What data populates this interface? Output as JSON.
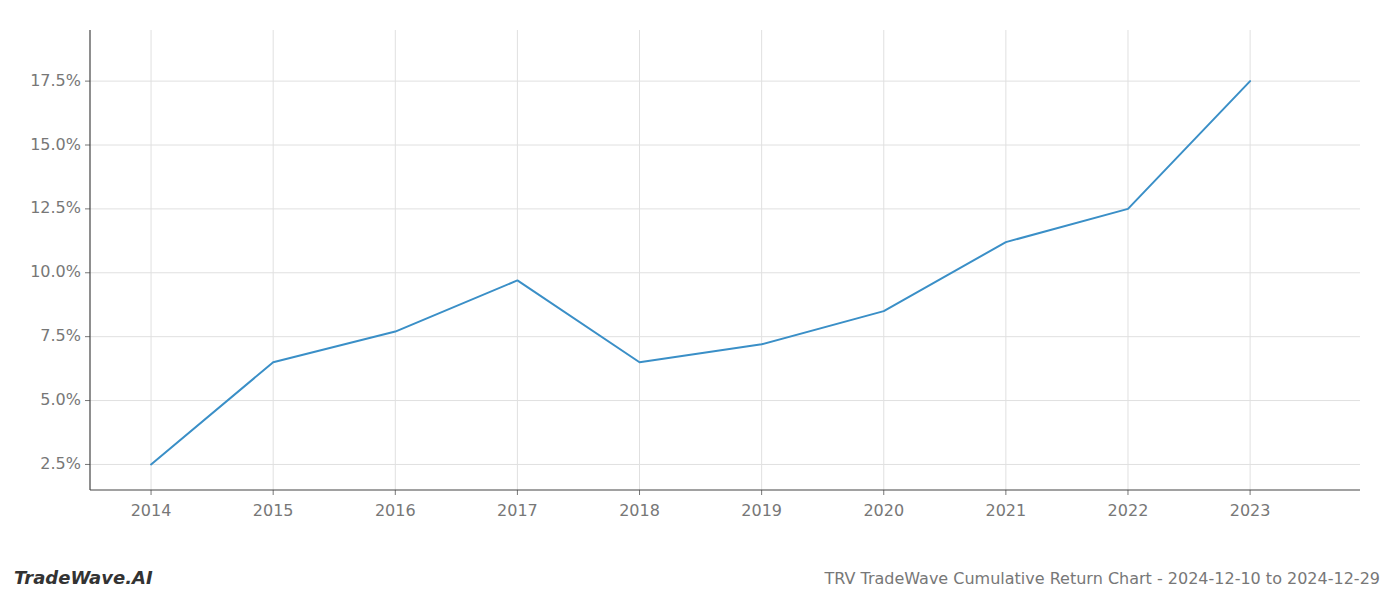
{
  "chart_data": {
    "type": "line",
    "title": "TRV TradeWave Cumulative Return Chart - 2024-12-10 to 2024-12-29",
    "annotations": [
      "TradeWave.AI"
    ],
    "x": [
      2014,
      2015,
      2016,
      2017,
      2018,
      2019,
      2020,
      2021,
      2022,
      2023
    ],
    "values": [
      2.5,
      6.5,
      7.7,
      9.7,
      6.5,
      7.2,
      8.5,
      11.2,
      12.5,
      17.5
    ],
    "color": "#3a8fc7",
    "xlim": [
      2013.5,
      2023.9
    ],
    "ylim": [
      1.5,
      19.5
    ],
    "xticks": [
      2014,
      2015,
      2016,
      2017,
      2018,
      2019,
      2020,
      2021,
      2022,
      2023
    ],
    "yticks": [
      {
        "value": 2.5,
        "label": "2.5%"
      },
      {
        "value": 5.0,
        "label": "5.0%"
      },
      {
        "value": 7.5,
        "label": "7.5%"
      },
      {
        "value": 10.0,
        "label": "10.0%"
      },
      {
        "value": 12.5,
        "label": "12.5%"
      },
      {
        "value": 15.0,
        "label": "15.0%"
      },
      {
        "value": 17.5,
        "label": "17.5%"
      }
    ],
    "grid": true
  }
}
